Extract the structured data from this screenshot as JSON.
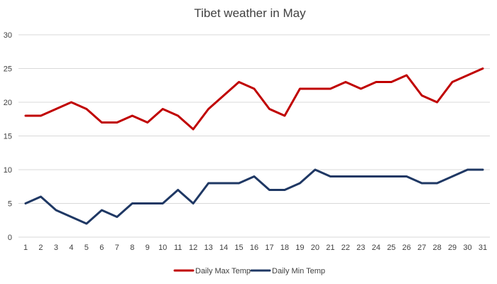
{
  "chart_data": {
    "type": "line",
    "title": "Tibet weather in May",
    "xlabel": "",
    "ylabel": "",
    "x": [
      1,
      2,
      3,
      4,
      5,
      6,
      7,
      8,
      9,
      10,
      11,
      12,
      13,
      14,
      15,
      16,
      17,
      18,
      19,
      20,
      21,
      22,
      23,
      24,
      25,
      26,
      27,
      28,
      29,
      30,
      31
    ],
    "ylim": [
      0,
      30
    ],
    "yticks": [
      0,
      5,
      10,
      15,
      20,
      25,
      30
    ],
    "grid": true,
    "legend_position": "bottom",
    "series": [
      {
        "name": "Daily Max Temp",
        "color": "#c00000",
        "values": [
          18,
          18,
          19,
          20,
          19,
          17,
          17,
          18,
          17,
          19,
          18,
          16,
          19,
          21,
          23,
          22,
          19,
          18,
          22,
          22,
          22,
          23,
          22,
          23,
          23,
          24,
          21,
          20,
          23,
          24,
          25
        ]
      },
      {
        "name": "Daily Min Temp",
        "color": "#1f3864",
        "values": [
          5,
          6,
          4,
          3,
          2,
          4,
          3,
          5,
          5,
          5,
          7,
          5,
          8,
          8,
          8,
          9,
          7,
          7,
          8,
          10,
          9,
          9,
          9,
          9,
          9,
          9,
          8,
          8,
          9,
          10,
          10
        ]
      }
    ]
  }
}
